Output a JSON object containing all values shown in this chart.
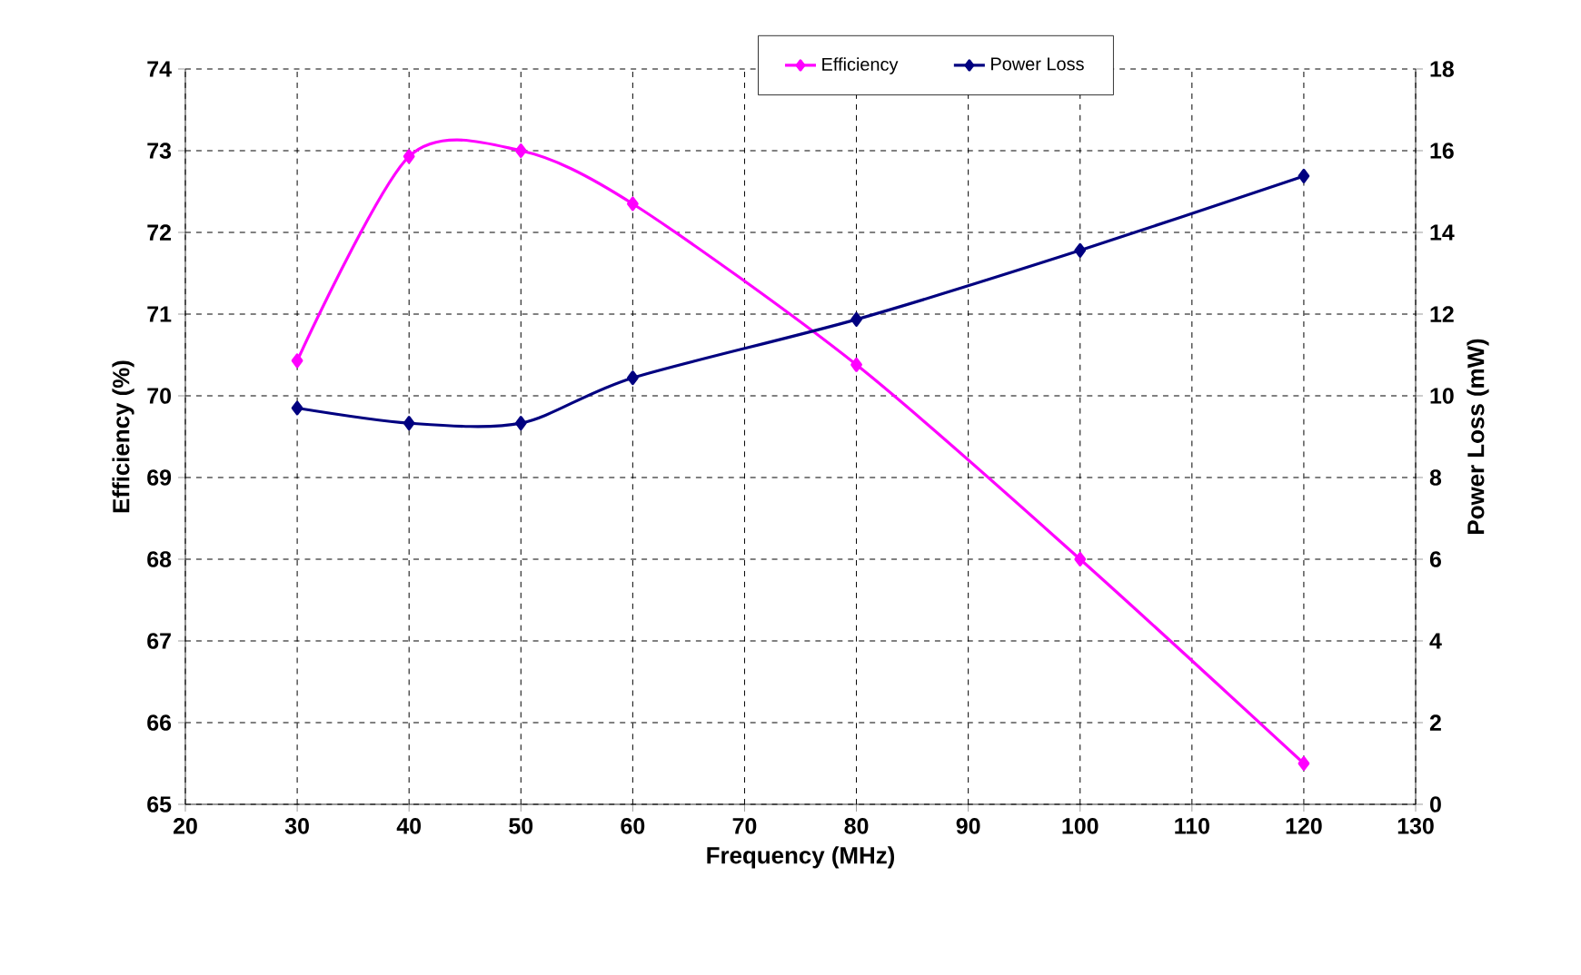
{
  "chart_data": {
    "type": "line",
    "xlabel": "Frequency (MHz)",
    "ylabel": "Efficiency (%)",
    "y2label": "Power Loss (mW)",
    "x": [
      30,
      40,
      50,
      60,
      80,
      100,
      120
    ],
    "series": [
      {
        "name": "Efficiency",
        "color": "#ff00ff",
        "values": [
          70.43,
          72.93,
          73.0,
          72.35,
          70.38,
          68.0,
          65.5
        ]
      },
      {
        "name": "Power Loss",
        "color": "#000080",
        "axis": "y2",
        "values": [
          9.7,
          9.33,
          9.33,
          10.44,
          11.87,
          13.56,
          15.38
        ]
      }
    ],
    "xlim": [
      20,
      130
    ],
    "xticks": [
      20,
      30,
      40,
      50,
      60,
      70,
      80,
      90,
      100,
      110,
      120,
      130
    ],
    "ylim": [
      65,
      74
    ],
    "yticks": [
      65,
      66,
      67,
      68,
      69,
      70,
      71,
      72,
      73,
      74
    ],
    "y2lim": [
      0,
      18
    ],
    "y2ticks": [
      0,
      2,
      4,
      6,
      8,
      10,
      12,
      14,
      16,
      18
    ],
    "grid": true,
    "legend": "top",
    "marker": "diamond"
  }
}
